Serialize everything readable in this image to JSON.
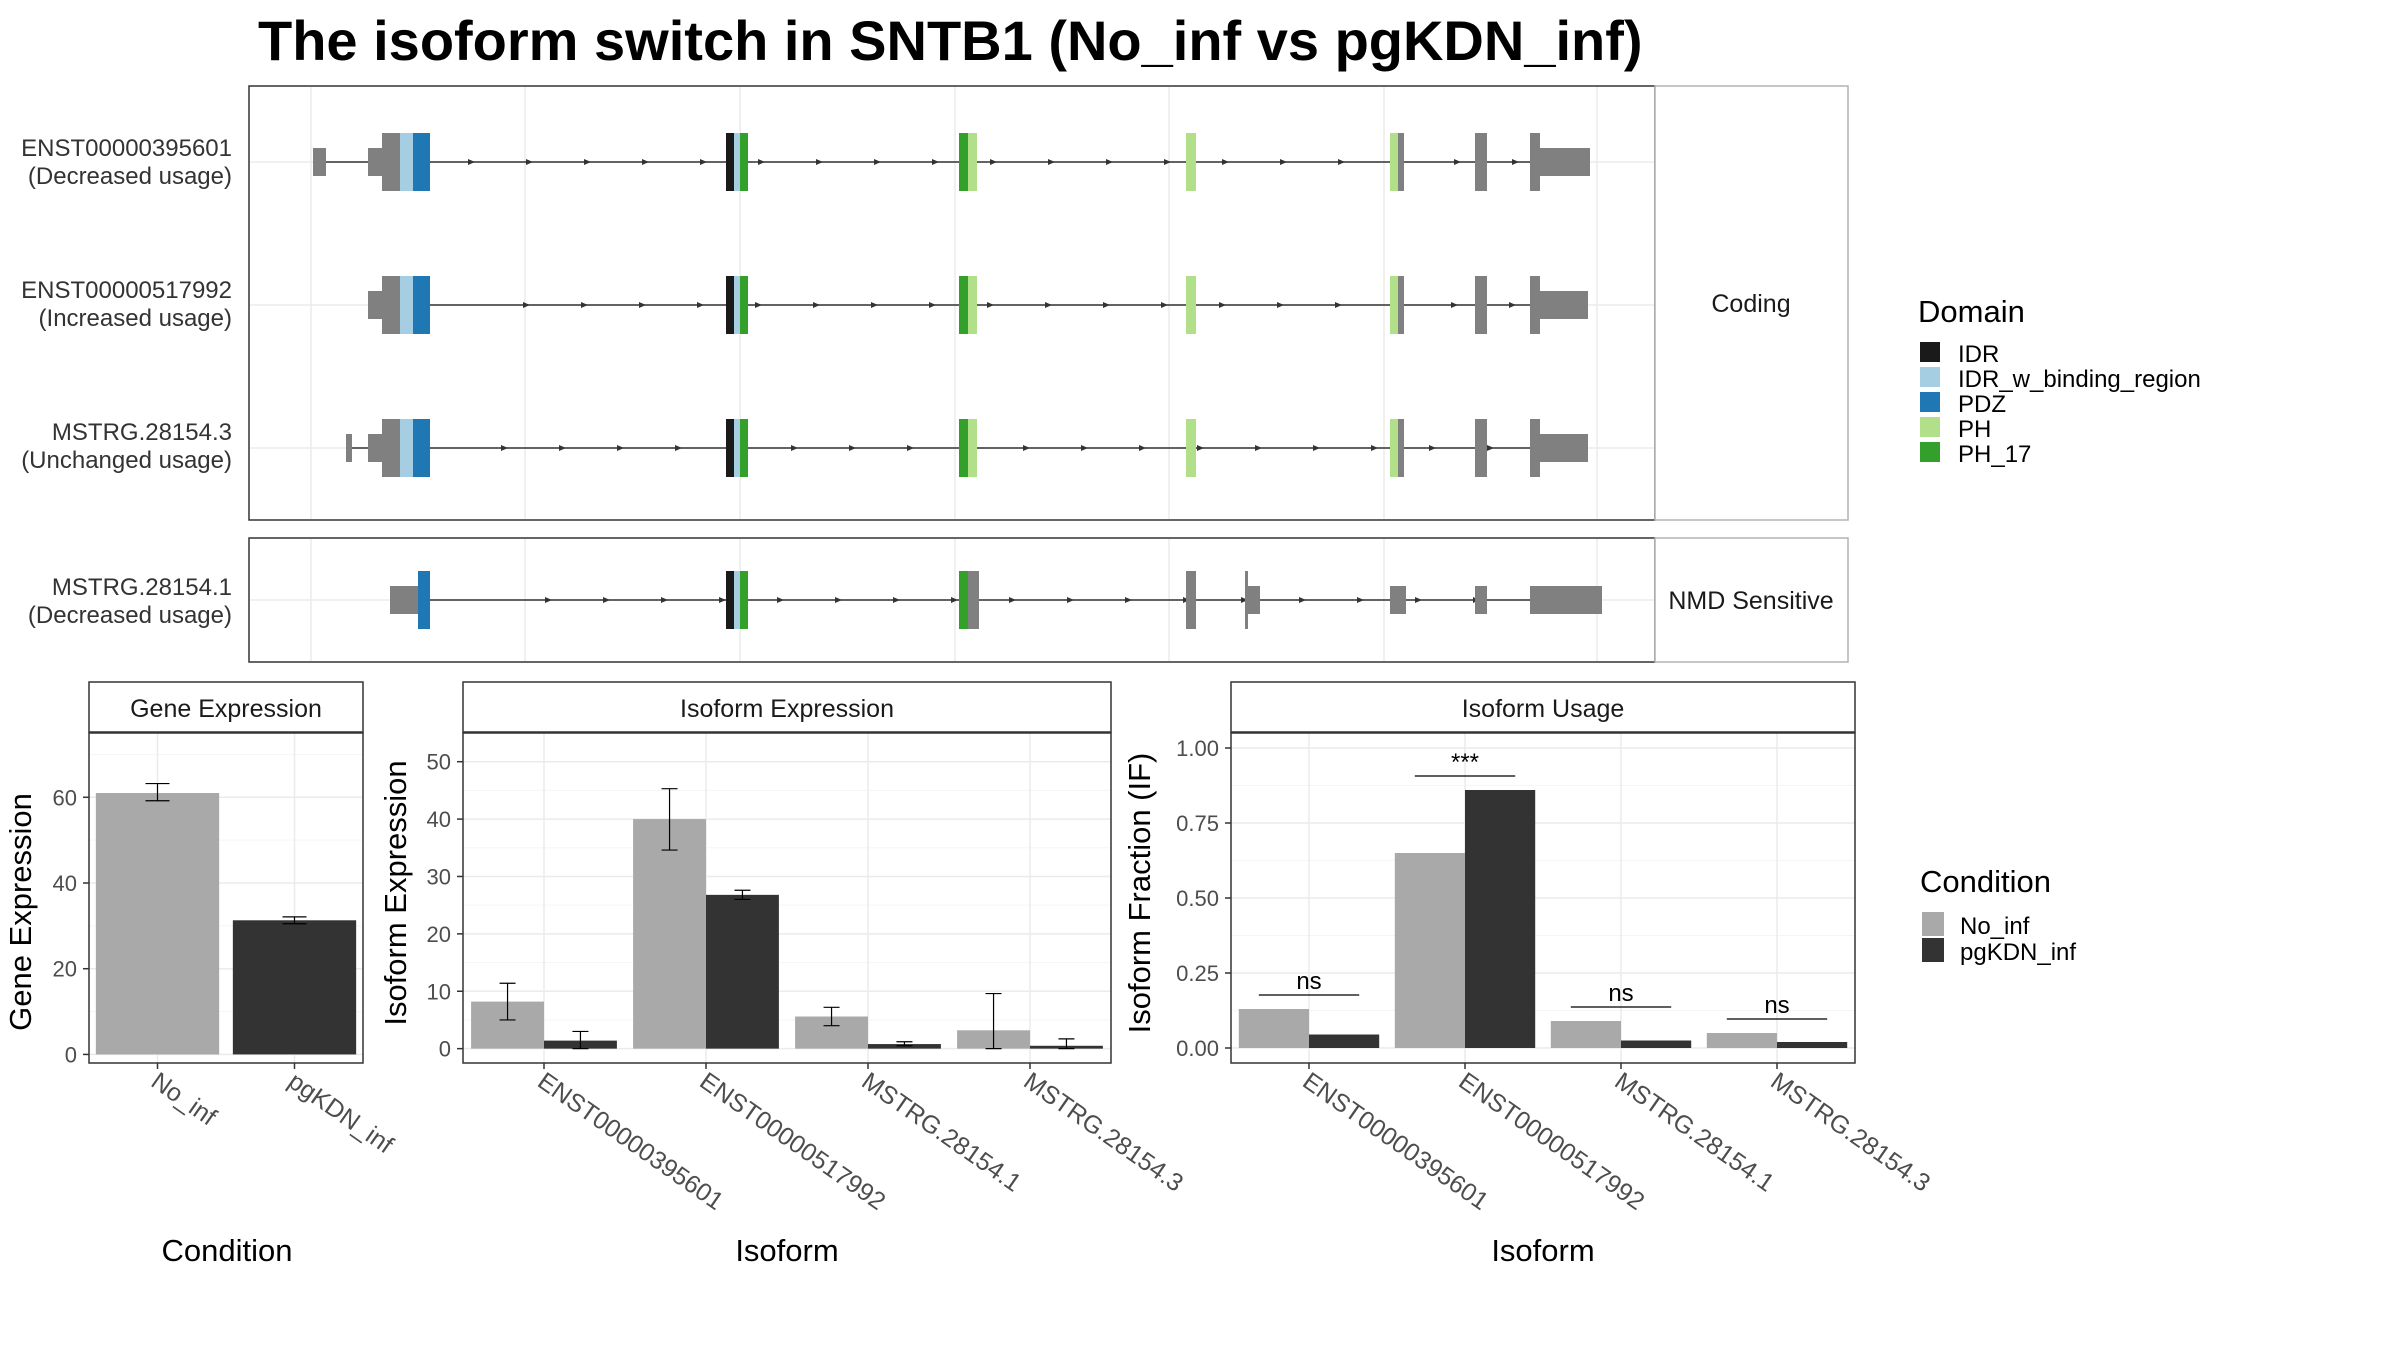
{
  "title": "The isoform switch in SNTB1 (No_inf vs pgKDN_inf)",
  "colors": {
    "exon": "#808080",
    "intron": "#333333",
    "no_inf": "#a9a9a9",
    "pgkdn_inf": "#333333",
    "IDR": "#1a1a1a",
    "IDR_w_binding_region": "#a6cee3",
    "PDZ": "#1f78b4",
    "PH": "#b2df8a",
    "PH_17": "#33a02c"
  },
  "transcripts": {
    "panels": [
      "Coding",
      "NMD Sensitive"
    ],
    "rows": [
      {
        "id": "ENST00000395601",
        "usage": "(Decreased usage)",
        "panel": 0
      },
      {
        "id": "ENST00000517992",
        "usage": "(Increased usage)",
        "panel": 0
      },
      {
        "id": "MSTRG.28154.3",
        "usage": "(Unchanged usage)",
        "panel": 0
      },
      {
        "id": "MSTRG.28154.1",
        "usage": "(Decreased usage)",
        "panel": 1
      }
    ]
  },
  "domain_legend": {
    "title": "Domain",
    "items": [
      {
        "name": "IDR",
        "color": "#1a1a1a"
      },
      {
        "name": "IDR_w_binding_region",
        "color": "#a6cee3"
      },
      {
        "name": "PDZ",
        "color": "#1f78b4"
      },
      {
        "name": "PH",
        "color": "#b2df8a"
      },
      {
        "name": "PH_17",
        "color": "#33a02c"
      }
    ]
  },
  "condition_legend": {
    "title": "Condition",
    "items": [
      {
        "name": "No_inf",
        "color": "#a9a9a9"
      },
      {
        "name": "pgKDN_inf",
        "color": "#333333"
      }
    ]
  },
  "chart_data": [
    {
      "type": "bar",
      "title": "Gene Expression",
      "xlabel": "Condition",
      "ylabel": "Gene Expression",
      "categories": [
        "No_inf",
        "pgKDN_inf"
      ],
      "values": [
        61,
        31.3
      ],
      "error": [
        [
          59.2,
          63.2
        ],
        [
          30.5,
          32.1
        ]
      ],
      "ylim": [
        -2,
        75
      ],
      "yticks": [
        "0",
        "20",
        "40",
        "60"
      ]
    },
    {
      "type": "bar",
      "title": "Isoform Expression",
      "xlabel": "Isoform",
      "ylabel": "Isoform Expression",
      "categories": [
        "ENST00000395601",
        "ENST00000517992",
        "MSTRG.28154.1",
        "MSTRG.28154.3"
      ],
      "series": [
        {
          "name": "No_inf",
          "values": [
            8.2,
            40,
            5.6,
            3.2
          ],
          "error": [
            [
              5,
              11.4
            ],
            [
              34.6,
              45.3
            ],
            [
              4,
              7.2
            ],
            [
              0,
              9.6
            ]
          ]
        },
        {
          "name": "pgKDN_inf",
          "values": [
            1.4,
            26.8,
            0.8,
            0.5
          ],
          "error": [
            [
              0,
              3
            ],
            [
              26,
              27.6
            ],
            [
              0.5,
              1.2
            ],
            [
              0,
              1.7
            ]
          ]
        }
      ],
      "ylim": [
        -2.5,
        55
      ],
      "yticks": [
        "0",
        "10",
        "20",
        "30",
        "40",
        "50"
      ]
    },
    {
      "type": "bar",
      "title": "Isoform Usage",
      "xlabel": "Isoform",
      "ylabel": "Isoform Fraction (IF)",
      "categories": [
        "ENST00000395601",
        "ENST00000517992",
        "MSTRG.28154.1",
        "MSTRG.28154.3"
      ],
      "series": [
        {
          "name": "No_inf",
          "values": [
            0.13,
            0.65,
            0.09,
            0.05
          ]
        },
        {
          "name": "pgKDN_inf",
          "values": [
            0.045,
            0.86,
            0.025,
            0.02
          ]
        }
      ],
      "significance": [
        "ns",
        "***",
        "ns",
        "ns"
      ],
      "ylim": [
        -0.05,
        1.05
      ],
      "yticks": [
        "0.00",
        "0.25",
        "0.50",
        "0.75",
        "1.00"
      ]
    }
  ]
}
